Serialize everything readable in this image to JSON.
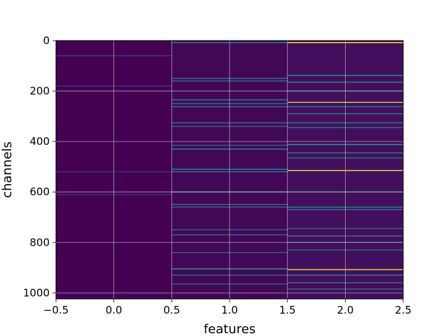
{
  "chart_data": {
    "type": "heatmap",
    "title": "",
    "xlabel": "features",
    "ylabel": "channels",
    "xlim": [
      -0.5,
      2.5
    ],
    "ylim": [
      1024,
      0
    ],
    "y_inverted": true,
    "grid": true,
    "colormap": "viridis",
    "background_color": "#440154",
    "x_tick_values": [
      -0.5,
      0.0,
      0.5,
      1.0,
      1.5,
      2.0,
      2.5
    ],
    "x_tick_labels": [
      "−0.5",
      "0.0",
      "0.5",
      "1.0",
      "1.5",
      "2.0",
      "2.5"
    ],
    "y_tick_values": [
      0,
      200,
      400,
      600,
      800,
      1000
    ],
    "y_tick_labels": [
      "0",
      "200",
      "400",
      "600",
      "800",
      "1000"
    ],
    "columns": [
      0,
      1,
      2
    ],
    "n_channels": 1024,
    "highlighted_rows": [
      {
        "column": 0,
        "channel": 60,
        "level": 0.18
      },
      {
        "column": 0,
        "channel": 180,
        "level": 0.15
      },
      {
        "column": 0,
        "channel": 520,
        "level": 0.15
      },
      {
        "column": 0,
        "channel": 610,
        "level": 0.15
      },
      {
        "column": 1,
        "channel": 8,
        "level": 0.45
      },
      {
        "column": 1,
        "channel": 150,
        "level": 0.4
      },
      {
        "column": 1,
        "channel": 160,
        "level": 0.35
      },
      {
        "column": 1,
        "channel": 235,
        "level": 0.45
      },
      {
        "column": 1,
        "channel": 250,
        "level": 0.35
      },
      {
        "column": 1,
        "channel": 262,
        "level": 0.4
      },
      {
        "column": 1,
        "channel": 326,
        "level": 0.35
      },
      {
        "column": 1,
        "channel": 340,
        "level": 0.3
      },
      {
        "column": 1,
        "channel": 415,
        "level": 0.3
      },
      {
        "column": 1,
        "channel": 430,
        "level": 0.45
      },
      {
        "column": 1,
        "channel": 510,
        "level": 0.45
      },
      {
        "column": 1,
        "channel": 520,
        "level": 0.4
      },
      {
        "column": 1,
        "channel": 600,
        "level": 0.6
      },
      {
        "column": 1,
        "channel": 650,
        "level": 0.35
      },
      {
        "column": 1,
        "channel": 660,
        "level": 0.3
      },
      {
        "column": 1,
        "channel": 750,
        "level": 0.3
      },
      {
        "column": 1,
        "channel": 770,
        "level": 0.35
      },
      {
        "column": 1,
        "channel": 840,
        "level": 0.3
      },
      {
        "column": 1,
        "channel": 905,
        "level": 0.55
      },
      {
        "column": 1,
        "channel": 930,
        "level": 0.35
      },
      {
        "column": 1,
        "channel": 965,
        "level": 0.3
      },
      {
        "column": 2,
        "channel": 8,
        "level": 1.0
      },
      {
        "column": 2,
        "channel": 138,
        "level": 0.5
      },
      {
        "column": 2,
        "channel": 165,
        "level": 0.45
      },
      {
        "column": 2,
        "channel": 200,
        "level": 0.4
      },
      {
        "column": 2,
        "channel": 245,
        "level": 0.9
      },
      {
        "column": 2,
        "channel": 262,
        "level": 0.4
      },
      {
        "column": 2,
        "channel": 290,
        "level": 0.45
      },
      {
        "column": 2,
        "channel": 326,
        "level": 0.4
      },
      {
        "column": 2,
        "channel": 345,
        "level": 0.35
      },
      {
        "column": 2,
        "channel": 412,
        "level": 0.55
      },
      {
        "column": 2,
        "channel": 445,
        "level": 0.4
      },
      {
        "column": 2,
        "channel": 465,
        "level": 0.35
      },
      {
        "column": 2,
        "channel": 515,
        "level": 0.95
      },
      {
        "column": 2,
        "channel": 600,
        "level": 0.55
      },
      {
        "column": 2,
        "channel": 660,
        "level": 0.45
      },
      {
        "column": 2,
        "channel": 670,
        "level": 0.4
      },
      {
        "column": 2,
        "channel": 745,
        "level": 0.35
      },
      {
        "column": 2,
        "channel": 775,
        "level": 0.4
      },
      {
        "column": 2,
        "channel": 800,
        "level": 0.35
      },
      {
        "column": 2,
        "channel": 830,
        "level": 0.35
      },
      {
        "column": 2,
        "channel": 908,
        "level": 0.95
      },
      {
        "column": 2,
        "channel": 930,
        "level": 0.45
      },
      {
        "column": 2,
        "channel": 960,
        "level": 0.4
      },
      {
        "column": 2,
        "channel": 985,
        "level": 0.35
      }
    ]
  }
}
